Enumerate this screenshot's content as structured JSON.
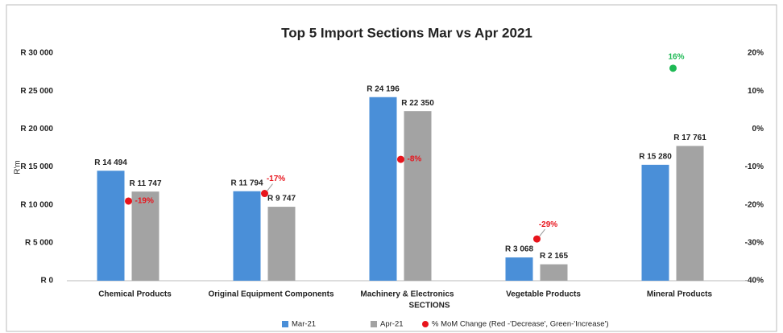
{
  "chart_data": {
    "type": "bar",
    "title": "Top 5 Import Sections Mar vs Apr 2021",
    "y_label": "R'm",
    "x_label": "SECTIONS",
    "categories": [
      "Chemical Products",
      "Original Equipment Components",
      "Machinery & Electronics",
      "Vegetable Products",
      "Mineral Products"
    ],
    "series": [
      {
        "name": "Mar-21",
        "color": "#4a8fd8",
        "values": [
          14494,
          11794,
          24196,
          3068,
          15280
        ],
        "value_labels": [
          "R 14 494",
          "R 11 794",
          "R 24 196",
          "R 3 068",
          "R 15 280"
        ]
      },
      {
        "name": "Apr-21",
        "color": "#a3a3a3",
        "values": [
          11747,
          9747,
          22350,
          2165,
          17761
        ],
        "value_labels": [
          "R 11 747",
          "R 9 747",
          "R 22 350",
          "R 2 165",
          "R 17 761"
        ]
      },
      {
        "name": "% MoM Change (Red -'Decrease', Green-'Increase')",
        "type": "scatter",
        "axis": "y2",
        "color": "#e8141c",
        "colors": [
          "#e8141c",
          "#e8141c",
          "#e8141c",
          "#e8141c",
          "#1db954"
        ],
        "values": [
          -19,
          -17,
          -8,
          -29,
          16
        ],
        "value_labels": [
          "-19%",
          "-17%",
          "-8%",
          "-29%",
          "16%"
        ]
      }
    ],
    "ylim": [
      0,
      30000
    ],
    "yticks": [
      {
        "value": 0,
        "label": "R 0"
      },
      {
        "value": 5000,
        "label": "R 5 000"
      },
      {
        "value": 10000,
        "label": "R 10 000"
      },
      {
        "value": 15000,
        "label": "R 15 000"
      },
      {
        "value": 20000,
        "label": "R 20 000"
      },
      {
        "value": 25000,
        "label": "R 25 000"
      },
      {
        "value": 30000,
        "label": "R 30 000"
      }
    ],
    "y2lim": [
      -40,
      20
    ],
    "y2ticks": [
      {
        "value": -40,
        "label": "-40%"
      },
      {
        "value": -30,
        "label": "-30%"
      },
      {
        "value": -20,
        "label": "-20%"
      },
      {
        "value": -10,
        "label": "-10%"
      },
      {
        "value": 0,
        "label": "0%"
      },
      {
        "value": 10,
        "label": "10%"
      },
      {
        "value": 20,
        "label": "20%"
      }
    ],
    "legend": "bottom"
  }
}
